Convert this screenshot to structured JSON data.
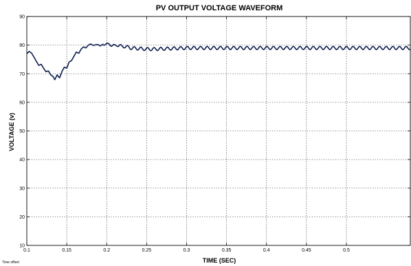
{
  "chart_data": {
    "type": "line",
    "title": "PV OUTPUT VOLTAGE WAVEFORM",
    "xlabel": "TIME (SEC)",
    "ylabel": "VOLTAGE (v)",
    "xlim": [
      0.1,
      0.58
    ],
    "ylim": [
      10,
      90
    ],
    "xticks": [
      0.1,
      0.15,
      0.2,
      0.25,
      0.3,
      0.35,
      0.4,
      0.45,
      0.5
    ],
    "yticks": [
      10,
      20,
      30,
      40,
      50,
      60,
      70,
      80,
      90
    ],
    "grid": true,
    "line_color": "#0b1b4d",
    "series": [
      {
        "x": [
          0.1,
          0.103,
          0.106,
          0.109,
          0.112,
          0.115,
          0.118,
          0.121,
          0.124,
          0.127,
          0.13,
          0.133,
          0.135,
          0.138,
          0.141,
          0.144,
          0.147,
          0.15,
          0.153,
          0.156,
          0.159,
          0.162,
          0.165,
          0.168,
          0.171,
          0.174,
          0.177,
          0.18,
          0.183,
          0.186,
          0.189,
          0.192,
          0.195,
          0.198,
          0.201,
          0.204,
          0.207,
          0.21,
          0.213,
          0.216,
          0.219,
          0.222,
          0.225,
          0.23,
          0.24,
          0.25,
          0.26,
          0.27,
          0.28,
          0.29,
          0.3,
          0.32,
          0.34,
          0.36,
          0.38,
          0.4,
          0.42,
          0.44,
          0.46,
          0.48,
          0.5,
          0.52,
          0.54,
          0.56,
          0.58
        ],
        "y": [
          77.0,
          77.8,
          77.2,
          75.8,
          74.3,
          72.9,
          73.3,
          71.9,
          70.7,
          71.0,
          69.6,
          69.0,
          67.9,
          69.6,
          68.5,
          70.8,
          72.3,
          71.9,
          74.1,
          74.6,
          76.1,
          77.6,
          77.1,
          78.6,
          79.4,
          79.0,
          80.0,
          80.4,
          79.9,
          80.1,
          80.2,
          79.7,
          80.3,
          80.6,
          80.1,
          80.3,
          80.0,
          79.6,
          80.1,
          79.9,
          79.4,
          79.6,
          79.4,
          79.0,
          78.8,
          78.6,
          78.6,
          78.7,
          78.8,
          78.9,
          79.0,
          79.0,
          79.0,
          79.0,
          79.0,
          79.0,
          79.0,
          79.0,
          79.0,
          79.0,
          79.0,
          79.0,
          79.0,
          79.0,
          79.0
        ]
      }
    ]
  },
  "footnote": "Time offset:"
}
